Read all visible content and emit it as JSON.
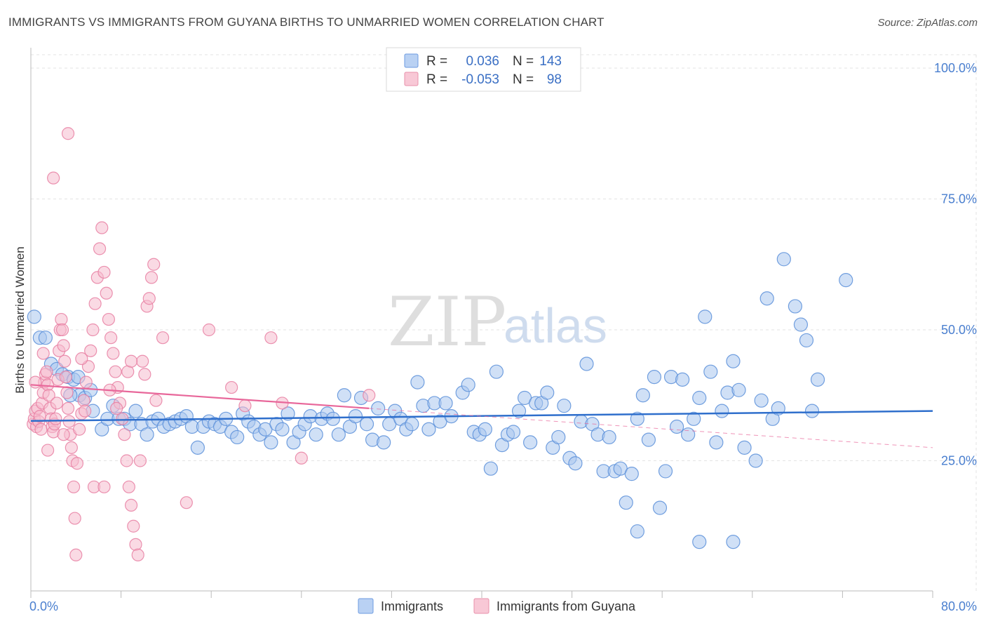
{
  "title": "IMMIGRANTS VS IMMIGRANTS FROM GUYANA BIRTHS TO UNMARRIED WOMEN CORRELATION CHART",
  "source": "Source: ZipAtlas.com",
  "watermark": {
    "zip": "ZIP",
    "atlas": "atlas"
  },
  "colors": {
    "blue": "#5b8fd9",
    "blue_fill": "#a9c6ef",
    "pink": "#e87fa2",
    "pink_fill": "#f6bccd",
    "blue_line": "#2f6fcc",
    "pink_line": "#e8679a"
  },
  "legend": {
    "rows": [
      {
        "r_label": "R =",
        "r_value": "0.036",
        "n_label": "N =",
        "n_value": "143"
      },
      {
        "r_label": "R =",
        "r_value": "-0.053",
        "n_label": "N =",
        "n_value": "98"
      }
    ]
  },
  "bottom_legend": {
    "series1": "Immigrants",
    "series2": "Immigrants from Guyana"
  },
  "chart_data": {
    "type": "scatter",
    "ylabel": "Births to Unmarried Women",
    "xlim": [
      0,
      80
    ],
    "ylim": [
      0,
      104
    ],
    "x_tick_labels": [
      "0.0%",
      "80.0%"
    ],
    "y_ticks": [
      {
        "value": 25,
        "label": "25.0%"
      },
      {
        "value": 50,
        "label": "50.0%"
      },
      {
        "value": 75,
        "label": "75.0%"
      },
      {
        "value": 100,
        "label": "100.0%"
      }
    ],
    "grid": true,
    "series": [
      {
        "name": "Immigrants",
        "trend": {
          "x0": 0,
          "y0": 32.6,
          "x1": 80,
          "y1": 34.5
        },
        "points": [
          [
            0.3,
            52.5
          ],
          [
            0.8,
            48.5
          ],
          [
            1.3,
            48.5
          ],
          [
            1.8,
            43.5
          ],
          [
            2.3,
            42.5
          ],
          [
            2.8,
            41.5
          ],
          [
            3.3,
            41
          ],
          [
            3.8,
            40.5
          ],
          [
            4.3,
            37.5
          ],
          [
            4.8,
            37
          ],
          [
            5.3,
            38.5
          ],
          [
            5.5,
            34.5
          ],
          [
            6.3,
            31
          ],
          [
            6.8,
            33
          ],
          [
            7.3,
            35.5
          ],
          [
            7.8,
            33
          ],
          [
            8.3,
            33
          ],
          [
            8.8,
            32
          ],
          [
            9.3,
            34.5
          ],
          [
            9.8,
            32
          ],
          [
            10.3,
            30
          ],
          [
            10.8,
            32.5
          ],
          [
            11.3,
            33
          ],
          [
            11.8,
            31.5
          ],
          [
            12.3,
            32
          ],
          [
            12.8,
            32.5
          ],
          [
            13.3,
            33
          ],
          [
            13.8,
            33.5
          ],
          [
            14.3,
            31.5
          ],
          [
            14.8,
            27.5
          ],
          [
            15.3,
            31.5
          ],
          [
            15.8,
            32.5
          ],
          [
            16.3,
            32
          ],
          [
            16.8,
            31.5
          ],
          [
            17.3,
            33
          ],
          [
            17.8,
            30.5
          ],
          [
            18.3,
            29.5
          ],
          [
            18.8,
            34
          ],
          [
            19.3,
            32.5
          ],
          [
            19.8,
            31.5
          ],
          [
            20.3,
            30
          ],
          [
            20.8,
            31
          ],
          [
            21.3,
            28.5
          ],
          [
            21.8,
            32
          ],
          [
            22.3,
            31
          ],
          [
            22.8,
            34
          ],
          [
            23.3,
            28.5
          ],
          [
            23.8,
            30.5
          ],
          [
            24.3,
            32
          ],
          [
            24.8,
            33.5
          ],
          [
            25.3,
            30
          ],
          [
            25.8,
            33
          ],
          [
            26.3,
            34
          ],
          [
            26.8,
            33
          ],
          [
            27.3,
            30
          ],
          [
            27.8,
            37.5
          ],
          [
            28.3,
            31.5
          ],
          [
            28.8,
            33.5
          ],
          [
            29.3,
            37
          ],
          [
            29.8,
            32
          ],
          [
            30.3,
            29
          ],
          [
            30.8,
            35
          ],
          [
            31.3,
            28.5
          ],
          [
            31.8,
            32
          ],
          [
            32.3,
            34.5
          ],
          [
            32.8,
            33
          ],
          [
            33.3,
            31
          ],
          [
            33.8,
            32
          ],
          [
            34.3,
            40
          ],
          [
            34.8,
            35.5
          ],
          [
            35.3,
            31
          ],
          [
            35.8,
            36
          ],
          [
            36.3,
            32.5
          ],
          [
            36.8,
            36
          ],
          [
            37.3,
            33.5
          ],
          [
            38.3,
            38
          ],
          [
            38.8,
            39.5
          ],
          [
            39.3,
            30.5
          ],
          [
            39.8,
            30
          ],
          [
            40.3,
            31
          ],
          [
            40.8,
            23.5
          ],
          [
            41.3,
            42
          ],
          [
            41.8,
            28
          ],
          [
            42.3,
            30
          ],
          [
            42.8,
            30.5
          ],
          [
            43.3,
            34.5
          ],
          [
            43.8,
            37
          ],
          [
            44.3,
            28.5
          ],
          [
            44.8,
            36
          ],
          [
            45.3,
            36
          ],
          [
            45.8,
            38
          ],
          [
            46.3,
            27.5
          ],
          [
            46.8,
            29.5
          ],
          [
            47.3,
            35.5
          ],
          [
            47.8,
            25.5
          ],
          [
            48.3,
            24.5
          ],
          [
            48.8,
            32.5
          ],
          [
            49.3,
            43.5
          ],
          [
            49.8,
            32
          ],
          [
            50.3,
            30
          ],
          [
            50.8,
            23
          ],
          [
            51.3,
            29.5
          ],
          [
            51.8,
            23
          ],
          [
            52.3,
            23.5
          ],
          [
            52.8,
            17
          ],
          [
            53.3,
            22.5
          ],
          [
            53.8,
            33
          ],
          [
            54.3,
            37.5
          ],
          [
            54.8,
            29
          ],
          [
            55.3,
            41
          ],
          [
            55.8,
            16
          ],
          [
            56.3,
            23
          ],
          [
            56.8,
            41
          ],
          [
            57.3,
            31.5
          ],
          [
            57.8,
            40.5
          ],
          [
            58.3,
            30
          ],
          [
            58.8,
            33
          ],
          [
            59.3,
            37
          ],
          [
            59.8,
            52.5
          ],
          [
            60.3,
            42
          ],
          [
            60.8,
            28.5
          ],
          [
            61.3,
            34.5
          ],
          [
            61.8,
            38
          ],
          [
            62.3,
            44
          ],
          [
            62.8,
            38.5
          ],
          [
            63.3,
            27.5
          ],
          [
            64.3,
            25
          ],
          [
            64.8,
            36.5
          ],
          [
            65.3,
            56
          ],
          [
            65.8,
            33
          ],
          [
            66.3,
            35
          ],
          [
            66.8,
            63.5
          ],
          [
            67.8,
            54.5
          ],
          [
            68.3,
            51
          ],
          [
            68.8,
            48
          ],
          [
            69.3,
            34.5
          ],
          [
            69.8,
            40.5
          ],
          [
            53.8,
            11.5
          ],
          [
            59.3,
            9.5
          ],
          [
            62.3,
            9.5
          ],
          [
            72.3,
            59.5
          ],
          [
            3.5,
            37.5
          ],
          [
            4.2,
            41
          ]
        ]
      },
      {
        "name": "Immigrants from Guyana",
        "trend": {
          "x0": 0,
          "y0": 39.5,
          "x1": 30,
          "y1": 35.0,
          "dash_x1": 80,
          "dash_y1": 27.5
        },
        "points": [
          [
            0.2,
            32
          ],
          [
            0.3,
            33
          ],
          [
            0.4,
            34.5
          ],
          [
            0.5,
            31.5
          ],
          [
            0.6,
            35
          ],
          [
            0.7,
            32.5
          ],
          [
            0.8,
            33.5
          ],
          [
            0.9,
            31
          ],
          [
            1.0,
            36
          ],
          [
            1.1,
            38
          ],
          [
            1.2,
            40
          ],
          [
            1.3,
            41.5
          ],
          [
            1.4,
            42
          ],
          [
            1.5,
            39.5
          ],
          [
            1.6,
            37.5
          ],
          [
            1.7,
            35
          ],
          [
            1.8,
            33
          ],
          [
            1.9,
            31.5
          ],
          [
            2.0,
            30.5
          ],
          [
            2.1,
            32
          ],
          [
            2.2,
            33
          ],
          [
            2.3,
            36
          ],
          [
            2.4,
            40.5
          ],
          [
            2.5,
            46
          ],
          [
            2.6,
            50
          ],
          [
            2.7,
            52
          ],
          [
            2.8,
            50
          ],
          [
            2.9,
            47
          ],
          [
            3.0,
            44
          ],
          [
            3.1,
            41
          ],
          [
            3.2,
            38
          ],
          [
            3.3,
            35
          ],
          [
            3.4,
            32.5
          ],
          [
            3.5,
            30
          ],
          [
            3.6,
            27.5
          ],
          [
            3.7,
            25
          ],
          [
            3.8,
            20
          ],
          [
            3.9,
            14
          ],
          [
            4.0,
            7
          ],
          [
            4.1,
            24.5
          ],
          [
            4.3,
            31
          ],
          [
            4.5,
            34
          ],
          [
            4.7,
            36.5
          ],
          [
            4.9,
            40
          ],
          [
            5.1,
            43
          ],
          [
            5.3,
            46
          ],
          [
            5.5,
            50
          ],
          [
            5.7,
            55
          ],
          [
            5.9,
            60
          ],
          [
            6.1,
            65.5
          ],
          [
            6.3,
            69.5
          ],
          [
            6.5,
            61
          ],
          [
            6.7,
            57
          ],
          [
            6.9,
            52
          ],
          [
            7.1,
            48.5
          ],
          [
            7.3,
            45.5
          ],
          [
            7.5,
            42
          ],
          [
            7.7,
            39
          ],
          [
            7.9,
            36
          ],
          [
            8.1,
            33
          ],
          [
            8.3,
            30
          ],
          [
            8.5,
            25
          ],
          [
            8.7,
            20
          ],
          [
            8.9,
            16.5
          ],
          [
            9.1,
            12.5
          ],
          [
            9.3,
            9
          ],
          [
            9.5,
            7
          ],
          [
            9.7,
            25
          ],
          [
            9.9,
            44
          ],
          [
            10.1,
            41.5
          ],
          [
            10.3,
            54.5
          ],
          [
            10.5,
            56
          ],
          [
            10.7,
            60
          ],
          [
            10.9,
            62.5
          ],
          [
            2.0,
            79
          ],
          [
            3.3,
            87.5
          ],
          [
            7.0,
            38.5
          ],
          [
            7.6,
            35
          ],
          [
            8.6,
            42
          ],
          [
            8.9,
            44
          ],
          [
            4.5,
            44.5
          ],
          [
            4.8,
            34.5
          ],
          [
            5.6,
            20
          ],
          [
            6.5,
            20
          ],
          [
            11.7,
            48.5
          ],
          [
            11.1,
            36.5
          ],
          [
            13.8,
            17
          ],
          [
            15.8,
            50
          ],
          [
            17.8,
            39
          ],
          [
            19.0,
            35.5
          ],
          [
            22.3,
            36
          ],
          [
            21.3,
            48.5
          ],
          [
            24.0,
            25.5
          ],
          [
            30.0,
            37.5
          ],
          [
            1.5,
            27
          ],
          [
            2.9,
            30
          ],
          [
            0.4,
            40
          ],
          [
            1.1,
            45.5
          ]
        ]
      }
    ]
  }
}
